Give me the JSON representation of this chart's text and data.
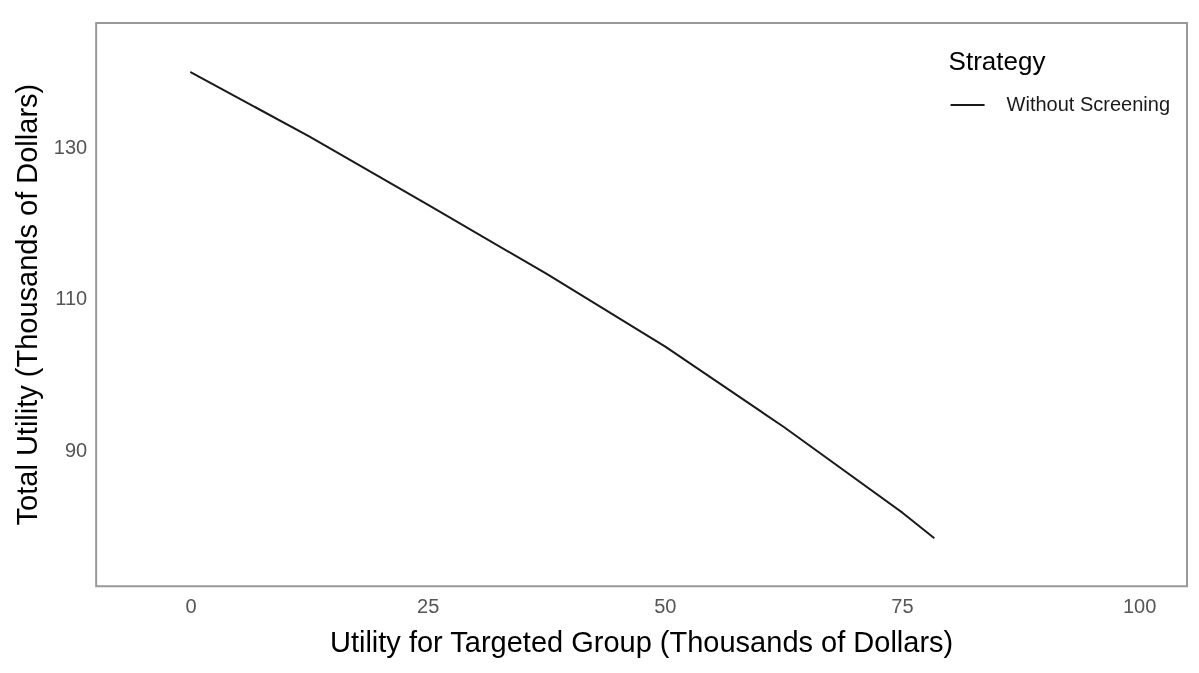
{
  "chart_data": {
    "type": "line",
    "xlabel": "Utility for Targeted Group (Thousands of Dollars)",
    "ylabel": "Total Utility (Thousands of Dollars)",
    "legend_title": "Strategy",
    "x": [
      0,
      12.5,
      25,
      37.5,
      50,
      62.5,
      75,
      78.3
    ],
    "series": [
      {
        "name": "Without Screening",
        "color": "#1a1a1a",
        "values": [
          140,
          131.5,
          122.5,
          113.4,
          103.8,
          93.2,
          81.9,
          78.6
        ]
      }
    ],
    "xlim": [
      -10,
      105
    ],
    "xticks": [
      0,
      25,
      50,
      75,
      100
    ],
    "ylim": [
      72.2,
      146.5
    ],
    "yticks": [
      90,
      110,
      130
    ],
    "grid": false,
    "legend": "top right",
    "line_style": "solid",
    "marker": "none"
  }
}
